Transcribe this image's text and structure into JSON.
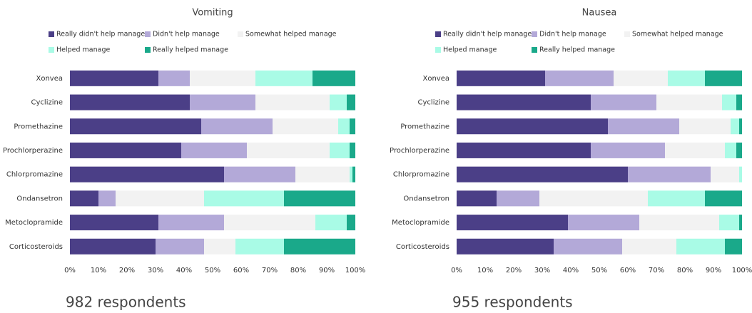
{
  "chart_data": [
    {
      "type": "stacked_bar_horizontal",
      "title": "Vomiting",
      "note": "982 respondents",
      "categories": [
        "Xonvea",
        "Cyclizine",
        "Promethazine",
        "Prochlorperazine",
        "Chlorpromazine",
        "Ondansetron",
        "Metoclopramide",
        "Corticosteroids"
      ],
      "series": [
        {
          "name": "Really didn't help manage",
          "color": "#4b3f87",
          "values": [
            31,
            42,
            46,
            39,
            54,
            10,
            31,
            30
          ]
        },
        {
          "name": "Didn't help manage",
          "color": "#b3a9d8",
          "values": [
            11,
            23,
            25,
            23,
            25,
            6,
            23,
            17
          ]
        },
        {
          "name": "Somewhat helped manage",
          "color": "#f2f2f2",
          "values": [
            23,
            26,
            23,
            29,
            19,
            31,
            32,
            11
          ]
        },
        {
          "name": "Helped manage",
          "color": "#a9fbe6",
          "values": [
            20,
            6,
            4,
            7,
            1,
            28,
            11,
            17
          ]
        },
        {
          "name": "Really helped manage",
          "color": "#1aa98a",
          "values": [
            15,
            3,
            2,
            2,
            1,
            25,
            3,
            25
          ]
        }
      ],
      "xlim": [
        0,
        100
      ],
      "xticks": [
        {
          "value": 0,
          "label": "0%"
        },
        {
          "value": 10,
          "label": "10%"
        },
        {
          "value": 20,
          "label": "20%"
        },
        {
          "value": 30,
          "label": "30%"
        },
        {
          "value": 40,
          "label": "40%"
        },
        {
          "value": 50,
          "label": "50%"
        },
        {
          "value": 60,
          "label": "60%"
        },
        {
          "value": 70,
          "label": "70%"
        },
        {
          "value": 80,
          "label": "80%"
        },
        {
          "value": 90,
          "label": "90%"
        },
        {
          "value": 100,
          "label": "100%"
        }
      ]
    },
    {
      "type": "stacked_bar_horizontal",
      "title": "Nausea",
      "note": "955 respondents",
      "categories": [
        "Xonvea",
        "Cyclizine",
        "Promethazine",
        "Prochlorperazine",
        "Chlorpromazine",
        "Ondansetron",
        "Metoclopramide",
        "Corticosteroids"
      ],
      "series": [
        {
          "name": "Really didn't help manage",
          "color": "#4b3f87",
          "values": [
            31,
            47,
            53,
            47,
            60,
            14,
            39,
            34
          ]
        },
        {
          "name": "Didn't help manage",
          "color": "#b3a9d8",
          "values": [
            24,
            23,
            25,
            26,
            29,
            15,
            25,
            24
          ]
        },
        {
          "name": "Somewhat helped manage",
          "color": "#f2f2f2",
          "values": [
            19,
            23,
            18,
            21,
            10,
            38,
            28,
            19
          ]
        },
        {
          "name": "Helped manage",
          "color": "#a9fbe6",
          "values": [
            13,
            5,
            3,
            4,
            1,
            20,
            7,
            17
          ]
        },
        {
          "name": "Really helped manage",
          "color": "#1aa98a",
          "values": [
            13,
            2,
            1,
            2,
            0,
            13,
            1,
            6
          ]
        }
      ],
      "xlim": [
        0,
        100
      ],
      "xticks": [
        {
          "value": 0,
          "label": "0%"
        },
        {
          "value": 10,
          "label": "10%"
        },
        {
          "value": 20,
          "label": "20%"
        },
        {
          "value": 30,
          "label": "30%"
        },
        {
          "value": 40,
          "label": "40%"
        },
        {
          "value": 50,
          "label": "50%"
        },
        {
          "value": 60,
          "label": "60%"
        },
        {
          "value": 70,
          "label": "70%"
        },
        {
          "value": 80,
          "label": "80%"
        },
        {
          "value": 90,
          "label": "90%"
        },
        {
          "value": 100,
          "label": "100%"
        }
      ]
    }
  ]
}
